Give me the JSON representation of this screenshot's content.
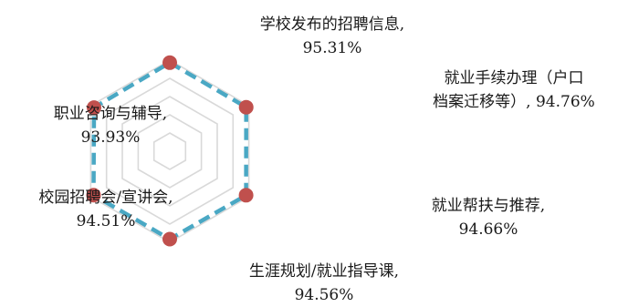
{
  "chart_data": {
    "type": "radar",
    "title": "",
    "categories": [
      "学校发布的招聘信息",
      "就业手续办理（户口档案迁移等）",
      "就业帮扶与推荐",
      "生涯规划/就业指导课",
      "校园招聘会/宣讲会",
      "职业咨询与辅导"
    ],
    "label_lines": [
      [
        "学校发布的招聘信息,",
        "95.31%"
      ],
      [
        "就业手续办理（户口",
        "档案迁移等）, 94.76%"
      ],
      [
        "就业帮扶与推荐,",
        "94.66%"
      ],
      [
        "生涯规划/就业指导课,",
        "94.56%"
      ],
      [
        "校园招聘会/宣讲会,",
        "94.51%"
      ],
      [
        "职业咨询与辅导,",
        "93.93%"
      ]
    ],
    "series": [
      {
        "values": [
          95.31,
          94.76,
          94.66,
          94.56,
          94.51,
          93.93
        ]
      }
    ],
    "grid": true,
    "line_color": "#4aa8c4",
    "marker_color": "#c0504d",
    "grid_color": "#d9d9d9"
  }
}
